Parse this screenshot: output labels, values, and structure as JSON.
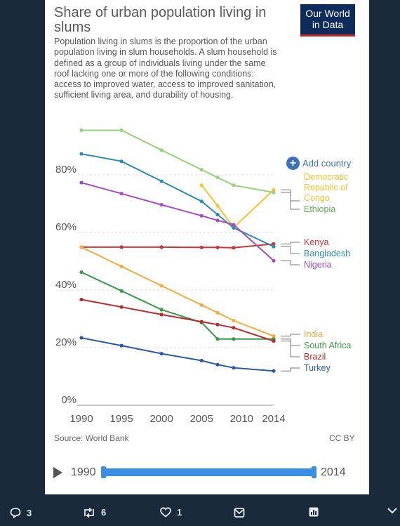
{
  "title": "Share of urban population living in slums",
  "subtitle": "Population living in slums is the proportion of the urban population living in slum households. A slum household is defined as a group of individuals living under the same roof lacking one or more of the following conditions: access to improved water, access to improved sanitation, sufficient living area, and durability of housing.",
  "logo": {
    "line1": "Our World",
    "line2": "in Data"
  },
  "add_country_label": "Add country",
  "source": "Source: World Bank",
  "license": "CC BY",
  "timeline": {
    "start": "1990",
    "end": "2014"
  },
  "tweet": {
    "replies": "3",
    "retweets": "6",
    "likes": "1"
  },
  "colors": {
    "accent": "#3a74b6",
    "logo_bg": "#0d2c5a",
    "logo_bar": "#c4262e",
    "background": "#1b2a3a"
  },
  "chart_data": {
    "type": "line",
    "x": [
      1990,
      1995,
      2000,
      2005,
      2007,
      2009,
      2014
    ],
    "x_ticks": [
      "1990",
      "1995",
      "2000",
      "2005",
      "2010",
      "2014"
    ],
    "y_ticks": [
      "0%",
      "20%",
      "40%",
      "60%",
      "80%"
    ],
    "xlim": [
      1990,
      2014
    ],
    "ylim": [
      0,
      90
    ],
    "grid": true,
    "legend": "right (labels at line ends)",
    "series": [
      {
        "name": "Democratic Republic of Congo",
        "color": "#f5c431",
        "points": [
          [
            2005,
            76.4
          ],
          [
            2007,
            69.3
          ],
          [
            2009,
            61.7
          ],
          [
            2014,
            74.8
          ]
        ]
      },
      {
        "name": "Ethiopia",
        "color": "#97d27e",
        "points": [
          [
            1990,
            95.5
          ],
          [
            1995,
            95.5
          ],
          [
            2000,
            88.6
          ],
          [
            2005,
            81.8
          ],
          [
            2007,
            79.1
          ],
          [
            2009,
            76.4
          ],
          [
            2014,
            73.9
          ]
        ]
      },
      {
        "name": "Kenya",
        "color": "#c8383a",
        "points": [
          [
            1990,
            54.9
          ],
          [
            1995,
            54.9
          ],
          [
            2000,
            54.9
          ],
          [
            2005,
            54.8
          ],
          [
            2007,
            54.8
          ],
          [
            2009,
            54.7
          ],
          [
            2014,
            56.0
          ]
        ]
      },
      {
        "name": "Bangladesh",
        "color": "#2f8bb2",
        "points": [
          [
            1990,
            87.3
          ],
          [
            1995,
            84.7
          ],
          [
            2000,
            77.8
          ],
          [
            2005,
            70.8
          ],
          [
            2007,
            66.2
          ],
          [
            2009,
            61.6
          ],
          [
            2014,
            55.1
          ]
        ]
      },
      {
        "name": "Nigeria",
        "color": "#a54dc0",
        "points": [
          [
            1990,
            77.3
          ],
          [
            1995,
            73.5
          ],
          [
            2000,
            69.6
          ],
          [
            2005,
            65.8
          ],
          [
            2007,
            64.2
          ],
          [
            2009,
            62.7
          ],
          [
            2014,
            50.2
          ]
        ]
      },
      {
        "name": "India",
        "color": "#f2ab3d",
        "points": [
          [
            1990,
            54.9
          ],
          [
            1995,
            48.2
          ],
          [
            2000,
            41.5
          ],
          [
            2005,
            34.8
          ],
          [
            2007,
            32.1
          ],
          [
            2009,
            29.4
          ],
          [
            2014,
            24.0
          ]
        ]
      },
      {
        "name": "South Africa",
        "color": "#3b9a48",
        "points": [
          [
            1990,
            46.2
          ],
          [
            1995,
            39.7
          ],
          [
            2000,
            33.2
          ],
          [
            2005,
            28.7
          ],
          [
            2007,
            23.0
          ],
          [
            2009,
            23.0
          ],
          [
            2014,
            23.0
          ]
        ]
      },
      {
        "name": "Brazil",
        "color": "#b52d2d",
        "points": [
          [
            1990,
            36.7
          ],
          [
            1995,
            34.1
          ],
          [
            2000,
            31.5
          ],
          [
            2005,
            29.0
          ],
          [
            2007,
            28.0
          ],
          [
            2009,
            26.9
          ],
          [
            2014,
            22.3
          ]
        ]
      },
      {
        "name": "Turkey",
        "color": "#2b5aa5",
        "points": [
          [
            1990,
            23.4
          ],
          [
            1995,
            20.7
          ],
          [
            2000,
            17.9
          ],
          [
            2005,
            15.5
          ],
          [
            2007,
            14.1
          ],
          [
            2009,
            13.0
          ],
          [
            2014,
            11.9
          ]
        ]
      }
    ],
    "labels": [
      {
        "series": "Democratic Republic of Congo",
        "lines": [
          "Democratic",
          "Republic of",
          "Congo"
        ],
        "color": "#f5c431"
      },
      {
        "series": "Ethiopia",
        "lines": [
          "Ethiopia"
        ],
        "color": "#6aa85c"
      },
      {
        "series": "Kenya",
        "lines": [
          "Kenya"
        ],
        "color": "#c8383a"
      },
      {
        "series": "Bangladesh",
        "lines": [
          "Bangladesh"
        ],
        "color": "#2f8bb2"
      },
      {
        "series": "Nigeria",
        "lines": [
          "Nigeria"
        ],
        "color": "#a54dc0"
      },
      {
        "series": "India",
        "lines": [
          "India"
        ],
        "color": "#f2ab3d"
      },
      {
        "series": "South Africa",
        "lines": [
          "South Africa"
        ],
        "color": "#3b9a48"
      },
      {
        "series": "Brazil",
        "lines": [
          "Brazil"
        ],
        "color": "#b52d2d"
      },
      {
        "series": "Turkey",
        "lines": [
          "Turkey"
        ],
        "color": "#2b5aa5"
      }
    ]
  }
}
